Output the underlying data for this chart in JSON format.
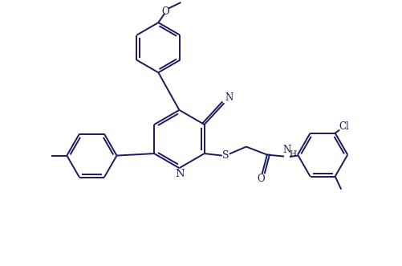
{
  "bg_color": "#ffffff",
  "line_color": "#1a1a5e",
  "line_width": 1.4,
  "font_size": 8.5,
  "figsize": [
    5.02,
    3.31
  ],
  "dpi": 100,
  "xlim": [
    0,
    10
  ],
  "ylim": [
    0,
    6.6
  ]
}
